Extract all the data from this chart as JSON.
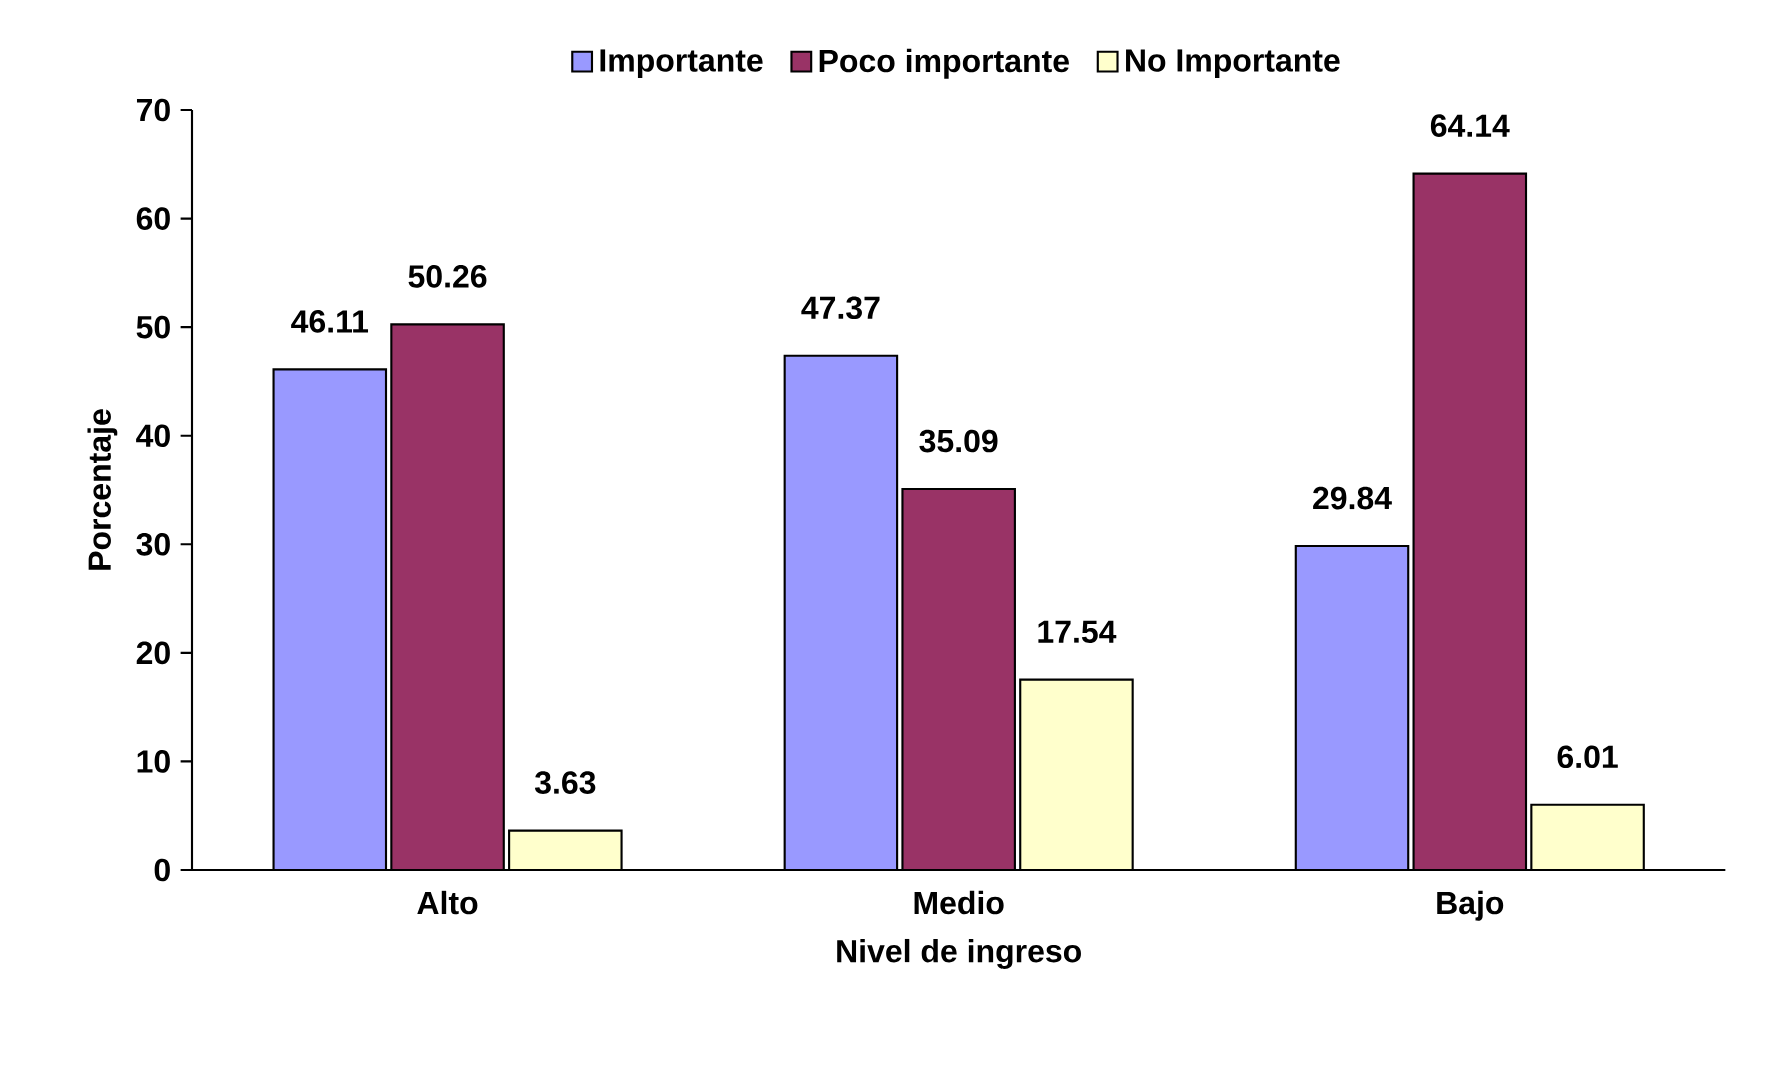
{
  "chart_data": {
    "type": "bar",
    "xlabel": "Nivel de ingreso",
    "ylabel": "Porcentaje",
    "categories": [
      "Alto",
      "Medio",
      "Bajo"
    ],
    "series": [
      {
        "name": "Importante",
        "color": "#9999ff",
        "values": [
          46.11,
          47.37,
          29.84
        ]
      },
      {
        "name": "Poco importante",
        "color": "#993366",
        "values": [
          50.26,
          35.09,
          64.14
        ]
      },
      {
        "name": "No Importante",
        "color": "#ffffcc",
        "values": [
          3.63,
          17.54,
          6.01
        ]
      }
    ],
    "ylim": [
      0,
      70
    ],
    "yticks": [
      0,
      10,
      20,
      30,
      40,
      50,
      60,
      70
    ],
    "data_labels": true,
    "legend": "top",
    "grid": false
  }
}
